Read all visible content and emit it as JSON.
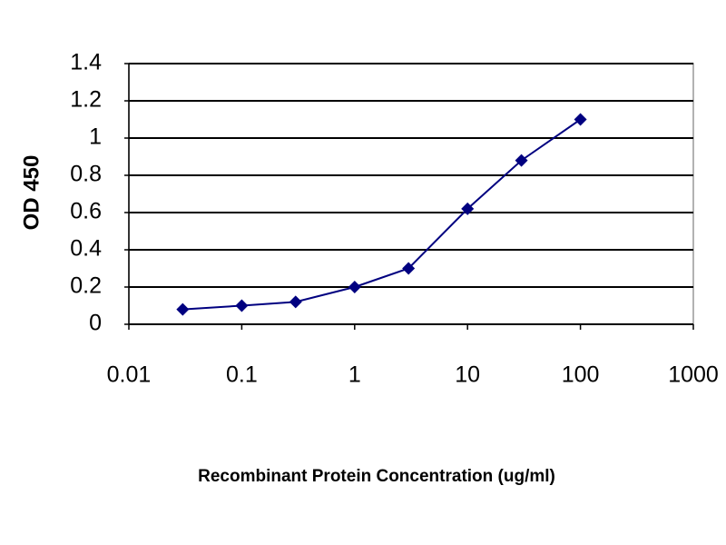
{
  "chart_data": {
    "type": "line",
    "x_label": "Recombinant Protein Concentration (ug/ml)",
    "y_label": "OD 450",
    "x": [
      0.03,
      0.1,
      0.3,
      1,
      3,
      10,
      30,
      100
    ],
    "series": [
      {
        "color": "#000080",
        "values": [
          0.08,
          0.1,
          0.12,
          0.2,
          0.3,
          0.62,
          0.88,
          1.1
        ]
      }
    ],
    "xlim": [
      0.01,
      1000
    ],
    "xticks": [
      0.01,
      0.1,
      1,
      10,
      100,
      1000
    ],
    "xscale": "log",
    "ylim": [
      0,
      1.4
    ],
    "yticks": [
      0,
      0.2,
      0.4,
      0.6,
      0.8,
      1,
      1.2,
      1.4
    ],
    "grid": true
  }
}
